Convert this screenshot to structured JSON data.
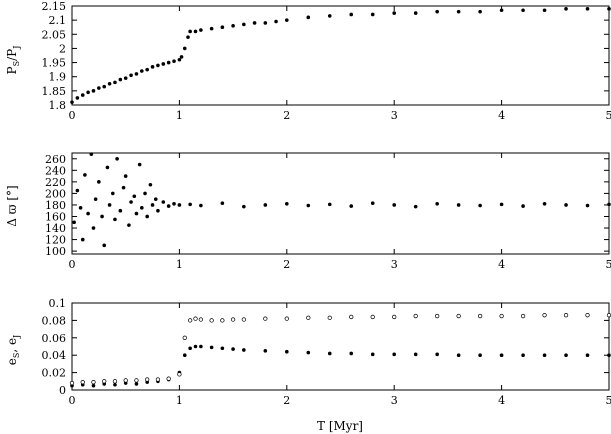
{
  "chart_data": [
    {
      "type": "scatter",
      "title": "",
      "ylabel_main": "P",
      "ylabel_sub1": "S",
      "ylabel_mid": "/P",
      "ylabel_sub2": "J",
      "xlabel": "",
      "xlim": [
        0,
        5
      ],
      "ylim": [
        1.8,
        2.15
      ],
      "xticks": [
        "0",
        "1",
        "2",
        "3",
        "4",
        "5"
      ],
      "yticks": [
        "1.8",
        "1.85",
        "1.9",
        "1.95",
        "2",
        "2.05",
        "2.1",
        "2.15"
      ],
      "series": [
        {
          "marker": "filled",
          "x": [
            0.0,
            0.05,
            0.1,
            0.15,
            0.2,
            0.25,
            0.3,
            0.35,
            0.4,
            0.45,
            0.5,
            0.55,
            0.6,
            0.65,
            0.7,
            0.75,
            0.8,
            0.85,
            0.9,
            0.95,
            1.0,
            1.02,
            1.05,
            1.08,
            1.1,
            1.15,
            1.2,
            1.3,
            1.4,
            1.5,
            1.6,
            1.7,
            1.8,
            1.9,
            2.0,
            2.2,
            2.4,
            2.6,
            2.8,
            3.0,
            3.2,
            3.4,
            3.6,
            3.8,
            4.0,
            4.2,
            4.4,
            4.6,
            4.8,
            5.0
          ],
          "y": [
            1.81,
            1.825,
            1.835,
            1.845,
            1.85,
            1.86,
            1.865,
            1.875,
            1.88,
            1.89,
            1.895,
            1.905,
            1.91,
            1.92,
            1.925,
            1.935,
            1.94,
            1.945,
            1.95,
            1.955,
            1.96,
            1.97,
            2.0,
            2.04,
            2.06,
            2.06,
            2.065,
            2.07,
            2.075,
            2.08,
            2.085,
            2.09,
            2.09,
            2.095,
            2.1,
            2.11,
            2.115,
            2.12,
            2.12,
            2.125,
            2.125,
            2.13,
            2.13,
            2.13,
            2.135,
            2.135,
            2.135,
            2.14,
            2.14,
            2.14
          ]
        }
      ]
    },
    {
      "type": "scatter",
      "title": "",
      "ylabel": "Δ ϖ [°]",
      "xlabel": "",
      "xlim": [
        0,
        5
      ],
      "ylim": [
        95,
        270
      ],
      "xticks": [
        "0",
        "1",
        "2",
        "3",
        "4",
        "5"
      ],
      "yticks": [
        "100",
        "120",
        "140",
        "160",
        "180",
        "200",
        "220",
        "240",
        "260"
      ],
      "series": [
        {
          "marker": "filled",
          "x": [
            0.02,
            0.05,
            0.08,
            0.1,
            0.12,
            0.15,
            0.18,
            0.2,
            0.22,
            0.25,
            0.28,
            0.3,
            0.33,
            0.35,
            0.38,
            0.4,
            0.42,
            0.45,
            0.48,
            0.5,
            0.53,
            0.55,
            0.58,
            0.6,
            0.63,
            0.65,
            0.68,
            0.7,
            0.73,
            0.75,
            0.78,
            0.8,
            0.85,
            0.9,
            0.95,
            1.0,
            1.1,
            1.2,
            1.4,
            1.6,
            1.8,
            2.0,
            2.2,
            2.4,
            2.6,
            2.8,
            3.0,
            3.2,
            3.4,
            3.6,
            3.8,
            4.0,
            4.2,
            4.4,
            4.6,
            4.8,
            5.0
          ],
          "y": [
            150,
            205,
            175,
            120,
            232,
            165,
            268,
            140,
            190,
            220,
            160,
            110,
            245,
            180,
            200,
            155,
            260,
            170,
            210,
            230,
            145,
            185,
            195,
            165,
            250,
            175,
            200,
            160,
            215,
            180,
            190,
            170,
            185,
            178,
            182,
            180,
            181,
            179,
            183,
            177,
            180,
            182,
            179,
            181,
            178,
            183,
            180,
            177,
            182,
            180,
            179,
            181,
            178,
            182,
            180,
            179,
            181
          ]
        }
      ]
    },
    {
      "type": "scatter",
      "title": "",
      "ylabel_e": "e",
      "ylabel_sub1": "S",
      "ylabel_sep": ", e",
      "ylabel_sub2": "J",
      "xlabel": "T [Myr]",
      "xlim": [
        0,
        5
      ],
      "ylim": [
        0,
        0.1
      ],
      "xticks": [
        "0",
        "1",
        "2",
        "3",
        "4",
        "5"
      ],
      "yticks": [
        "0",
        "0.02",
        "0.04",
        "0.06",
        "0.08",
        "0.1"
      ],
      "series": [
        {
          "marker": "filled",
          "x": [
            0.0,
            0.1,
            0.2,
            0.3,
            0.4,
            0.5,
            0.6,
            0.7,
            0.8,
            0.9,
            1.0,
            1.05,
            1.1,
            1.15,
            1.2,
            1.3,
            1.4,
            1.5,
            1.6,
            1.8,
            2.0,
            2.2,
            2.4,
            2.6,
            2.8,
            3.0,
            3.2,
            3.4,
            3.6,
            3.8,
            4.0,
            4.2,
            4.4,
            4.6,
            4.8,
            5.0
          ],
          "y": [
            0.005,
            0.006,
            0.005,
            0.007,
            0.006,
            0.008,
            0.007,
            0.009,
            0.01,
            0.012,
            0.02,
            0.04,
            0.048,
            0.05,
            0.05,
            0.049,
            0.048,
            0.047,
            0.046,
            0.045,
            0.044,
            0.043,
            0.042,
            0.042,
            0.041,
            0.041,
            0.041,
            0.041,
            0.04,
            0.04,
            0.04,
            0.04,
            0.04,
            0.04,
            0.04,
            0.04
          ]
        },
        {
          "marker": "open",
          "x": [
            0.0,
            0.1,
            0.2,
            0.3,
            0.4,
            0.5,
            0.6,
            0.7,
            0.8,
            0.9,
            1.0,
            1.05,
            1.1,
            1.15,
            1.2,
            1.3,
            1.4,
            1.5,
            1.6,
            1.8,
            2.0,
            2.2,
            2.4,
            2.6,
            2.8,
            3.0,
            3.2,
            3.4,
            3.6,
            3.8,
            4.0,
            4.2,
            4.4,
            4.6,
            4.8,
            5.0
          ],
          "y": [
            0.008,
            0.009,
            0.009,
            0.01,
            0.01,
            0.011,
            0.011,
            0.012,
            0.012,
            0.013,
            0.018,
            0.06,
            0.08,
            0.082,
            0.081,
            0.08,
            0.08,
            0.081,
            0.081,
            0.082,
            0.082,
            0.083,
            0.083,
            0.084,
            0.084,
            0.084,
            0.085,
            0.085,
            0.085,
            0.085,
            0.085,
            0.085,
            0.086,
            0.086,
            0.086,
            0.086
          ]
        }
      ]
    }
  ]
}
